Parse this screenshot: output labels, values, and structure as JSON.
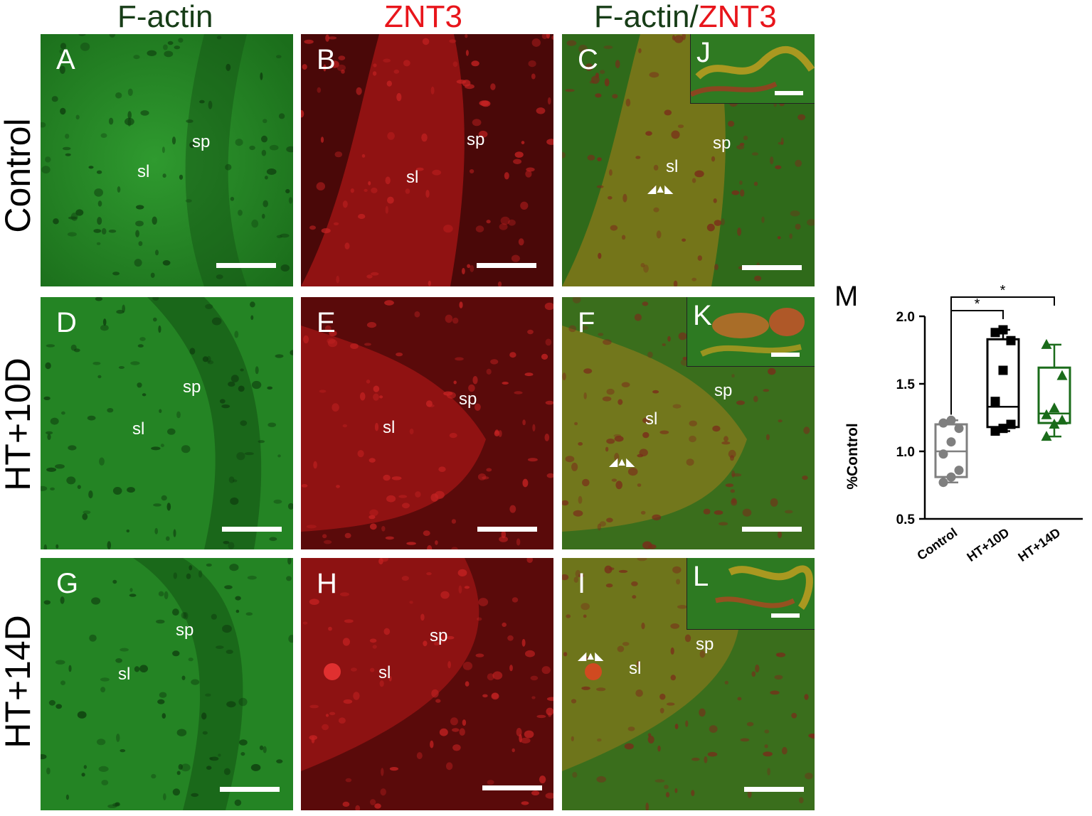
{
  "columns": [
    {
      "title_parts": [
        {
          "text": "F-actin",
          "color": "#173d17"
        }
      ]
    },
    {
      "title_parts": [
        {
          "text": "ZNT3",
          "color": "#e8151b"
        }
      ]
    },
    {
      "title_parts": [
        {
          "text": "F-actin/",
          "color": "#173d17"
        },
        {
          "text": "ZNT3",
          "color": "#e8151b"
        }
      ]
    }
  ],
  "rows": [
    "Control",
    "HT+10D",
    "HT+14D"
  ],
  "panels": {
    "A": {
      "letter": "A",
      "sp": "sp",
      "sl": "sl"
    },
    "B": {
      "letter": "B",
      "sp": "sp",
      "sl": "sl"
    },
    "C": {
      "letter": "C",
      "sp": "sp",
      "sl": "sl",
      "inset": "J"
    },
    "D": {
      "letter": "D",
      "sp": "sp",
      "sl": "sl"
    },
    "E": {
      "letter": "E",
      "sp": "sp",
      "sl": "sl"
    },
    "F": {
      "letter": "F",
      "sp": "sp",
      "sl": "sl",
      "inset": "K"
    },
    "G": {
      "letter": "G",
      "sp": "sp",
      "sl": "sl"
    },
    "H": {
      "letter": "H",
      "sp": "sp",
      "sl": "sl"
    },
    "I": {
      "letter": "I",
      "sp": "sp",
      "sl": "sl",
      "inset": "L"
    }
  },
  "colors": {
    "green_channel": "#1f8a1f",
    "red_channel": "#7a0d0d",
    "merge": "#4a7a1c",
    "control": "#7f7f7f",
    "ht10d": "#000000",
    "ht14d": "#1a6b1a"
  },
  "chart_data": {
    "type": "box",
    "panel_label": "M",
    "ylabel": "%Control",
    "ylim": [
      0.5,
      2.0
    ],
    "yticks": [
      "0.5",
      "1.0",
      "1.5",
      "2.0"
    ],
    "categories": [
      "Control",
      "HT+10D",
      "HT+14D"
    ],
    "series": [
      {
        "category": "Control",
        "min": 0.77,
        "q1": 0.81,
        "median": 1.0,
        "q3": 1.2,
        "max": 1.23,
        "points": [
          0.77,
          0.81,
          0.86,
          0.98,
          1.07,
          1.17,
          1.21,
          1.23
        ],
        "marker": "circle",
        "color": "#7f7f7f"
      },
      {
        "category": "HT+10D",
        "min": 1.15,
        "q1": 1.18,
        "median": 1.33,
        "q3": 1.83,
        "max": 1.9,
        "points": [
          1.15,
          1.17,
          1.2,
          1.37,
          1.6,
          1.82,
          1.88,
          1.9
        ],
        "marker": "square",
        "color": "#000000"
      },
      {
        "category": "HT+14D",
        "min": 1.11,
        "q1": 1.21,
        "median": 1.28,
        "q3": 1.62,
        "max": 1.79,
        "points": [
          1.11,
          1.2,
          1.23,
          1.27,
          1.32,
          1.56,
          1.79
        ],
        "marker": "triangle",
        "color": "#1a6b1a"
      }
    ],
    "significance": [
      {
        "from": "Control",
        "to": "HT+10D",
        "label": "*"
      },
      {
        "from": "Control",
        "to": "HT+14D",
        "label": "*"
      }
    ]
  }
}
